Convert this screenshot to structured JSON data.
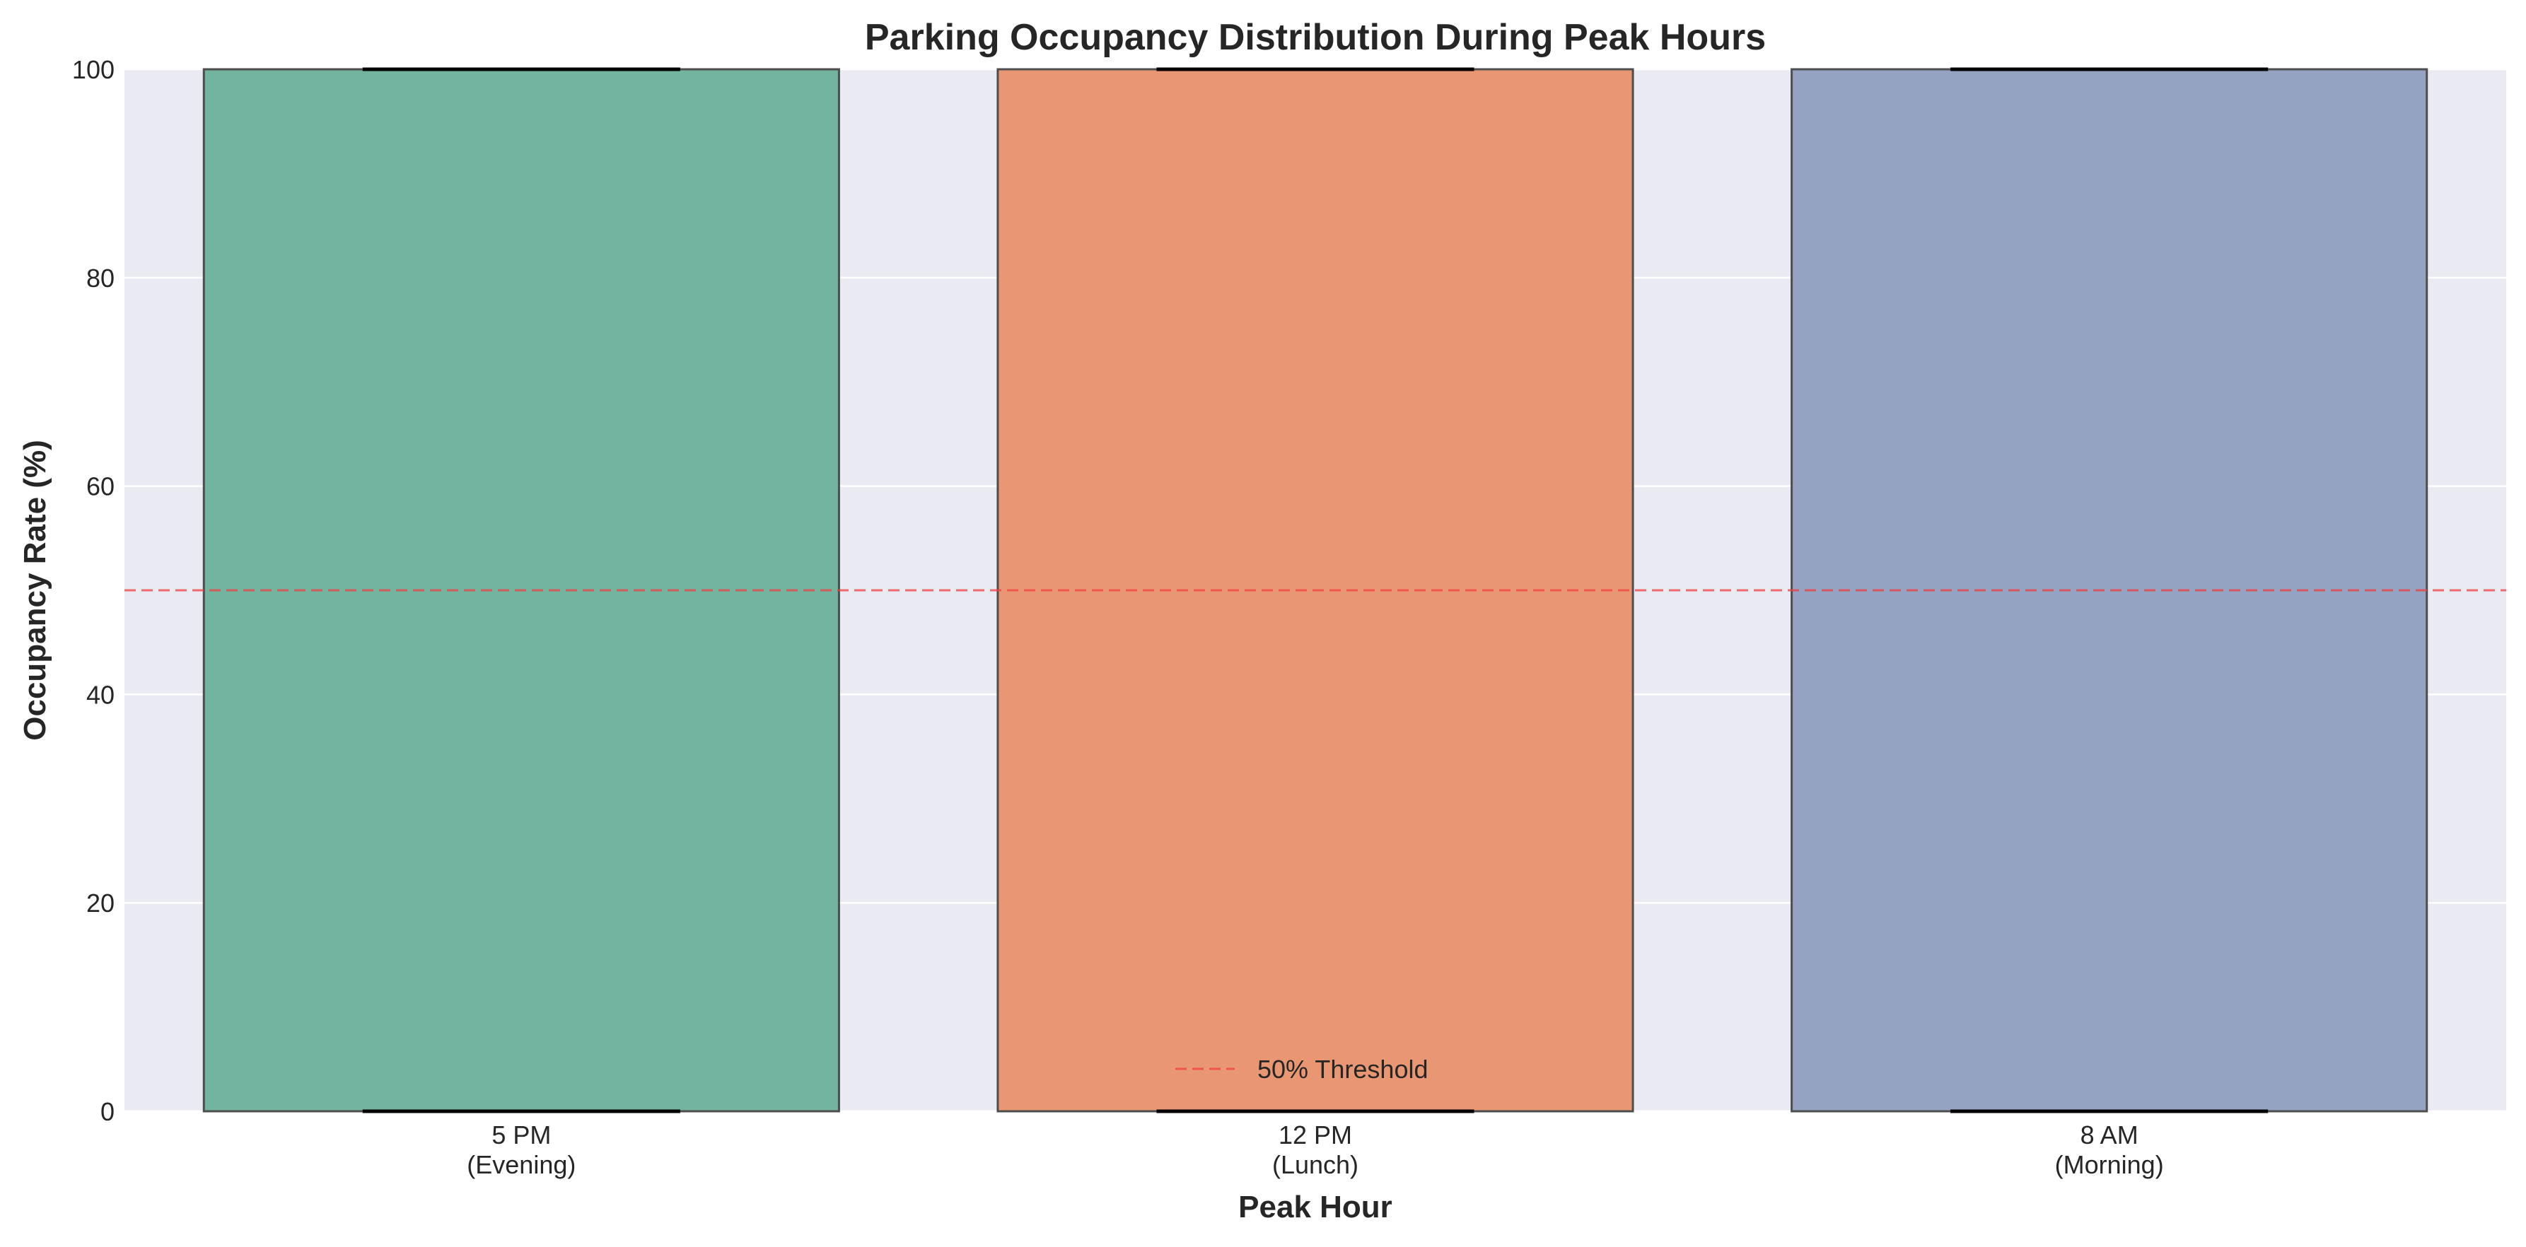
{
  "chart_data": {
    "type": "box",
    "title": "Parking Occupancy Distribution During Peak Hours",
    "xlabel": "Peak Hour",
    "ylabel": "Occupancy Rate (%)",
    "ylim": [
      0,
      100
    ],
    "yticks": [
      0,
      20,
      40,
      60,
      80,
      100
    ],
    "grid": true,
    "categories": [
      {
        "line1": "5 PM",
        "line2": "(Evening)",
        "color": "#73b4a0",
        "q1": 0,
        "median": 0,
        "q3": 100,
        "whisker_low": 0,
        "whisker_high": 100
      },
      {
        "line1": "12 PM",
        "line2": "(Lunch)",
        "color": "#e99673",
        "q1": 0,
        "median": 0,
        "q3": 100,
        "whisker_low": 0,
        "whisker_high": 100
      },
      {
        "line1": "8 AM",
        "line2": "(Morning)",
        "color": "#95a3c3",
        "q1": 0,
        "median": 0,
        "q3": 100,
        "whisker_low": 0,
        "whisker_high": 100
      }
    ],
    "threshold": {
      "value": 50,
      "label": "50% Threshold",
      "color": "#f04040",
      "style": "dashed"
    },
    "legend_position": "bottom-center",
    "colors": {
      "plot_background": "#eaeaf2",
      "grid": "#ffffff",
      "box_edge": "#4d4d4d",
      "whisker_cap": "#000000"
    }
  }
}
